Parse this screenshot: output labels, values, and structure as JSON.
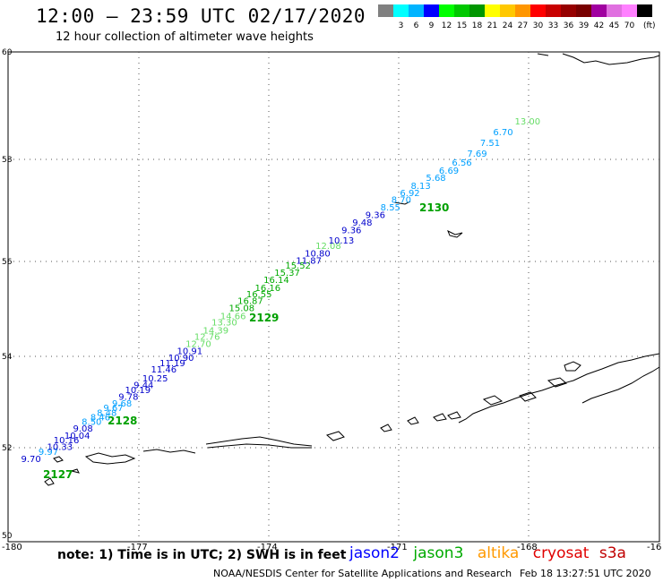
{
  "header": {
    "title": "12:00 – 23:59 UTC 02/17/2020",
    "subtitle": "12 hour collection of altimeter wave heights"
  },
  "colorbar": {
    "colors": [
      "#808080",
      "#00ffff",
      "#00b4ff",
      "#0000ff",
      "#00ff00",
      "#00c800",
      "#009600",
      "#ffff00",
      "#ffc800",
      "#ff9600",
      "#ff0000",
      "#c80000",
      "#960000",
      "#780000",
      "#a000a0",
      "#e070e0",
      "#ff80ff",
      "#000000"
    ],
    "labels": [
      "3",
      "6",
      "9",
      "12",
      "15",
      "18",
      "21",
      "24",
      "27",
      "30",
      "33",
      "36",
      "39",
      "42",
      "45",
      "70"
    ],
    "unit": "(ft)"
  },
  "axes": {
    "lon_ticks": [
      "-180",
      "-177",
      "-174",
      "-171",
      "-168",
      "-16"
    ],
    "lat_ticks": [
      "60",
      "58",
      "56",
      "54",
      "52",
      "50"
    ]
  },
  "tracks": [
    {
      "label": "2127",
      "color": "#00a000"
    },
    {
      "label": "2128",
      "color": "#00a000"
    },
    {
      "label": "2129",
      "color": "#00a000"
    },
    {
      "label": "2130",
      "color": "#00a000"
    }
  ],
  "chart_data": {
    "type": "scatter",
    "series": [
      {
        "name": "jason2",
        "color": "#0000ff"
      },
      {
        "name": "jason3",
        "color": "#00aa00"
      },
      {
        "name": "altika",
        "color": "#ff9900"
      },
      {
        "name": "cryosat",
        "color": "#e00000"
      },
      {
        "name": "s3a",
        "color": "#c00000"
      }
    ],
    "points": [
      {
        "lon": -179.7,
        "lat": 51.7,
        "value": "9.70",
        "color": "#0000cc"
      },
      {
        "lon": -179.3,
        "lat": 51.85,
        "value": "9.97",
        "color": "#00a0ff"
      },
      {
        "lon": -179.1,
        "lat": 51.95,
        "value": "10.33",
        "color": "#0000cc"
      },
      {
        "lon": -178.95,
        "lat": 52.1,
        "value": "10.16",
        "color": "#0000cc"
      },
      {
        "lon": -178.7,
        "lat": 52.2,
        "value": "10.04",
        "color": "#0000cc"
      },
      {
        "lon": -178.5,
        "lat": 52.35,
        "value": "9.08",
        "color": "#0000cc"
      },
      {
        "lon": -178.3,
        "lat": 52.5,
        "value": "8.50",
        "color": "#00a0ff"
      },
      {
        "lon": -178.1,
        "lat": 52.6,
        "value": "8.46",
        "color": "#00a0ff"
      },
      {
        "lon": -177.95,
        "lat": 52.7,
        "value": "8.48",
        "color": "#00a0ff"
      },
      {
        "lon": -177.8,
        "lat": 52.8,
        "value": "9.67",
        "color": "#00a0ff"
      },
      {
        "lon": -177.6,
        "lat": 52.9,
        "value": "9.68",
        "color": "#00a0ff"
      },
      {
        "lon": -177.45,
        "lat": 53.05,
        "value": "9.78",
        "color": "#0000cc"
      },
      {
        "lon": -177.3,
        "lat": 53.2,
        "value": "10.19",
        "color": "#0000cc"
      },
      {
        "lon": -177.1,
        "lat": 53.3,
        "value": "9.44",
        "color": "#0000cc"
      },
      {
        "lon": -176.9,
        "lat": 53.45,
        "value": "10.25",
        "color": "#0000cc"
      },
      {
        "lon": -176.7,
        "lat": 53.65,
        "value": "11.46",
        "color": "#0000cc"
      },
      {
        "lon": -176.5,
        "lat": 53.78,
        "value": "11.19",
        "color": "#0000cc"
      },
      {
        "lon": -176.3,
        "lat": 53.9,
        "value": "10.90",
        "color": "#0000cc"
      },
      {
        "lon": -176.1,
        "lat": 54.05,
        "value": "10.91",
        "color": "#0000cc"
      },
      {
        "lon": -175.9,
        "lat": 54.2,
        "value": "12.70",
        "color": "#66dd66"
      },
      {
        "lon": -175.7,
        "lat": 54.35,
        "value": "12.76",
        "color": "#66dd66"
      },
      {
        "lon": -175.5,
        "lat": 54.48,
        "value": "14.39",
        "color": "#66dd66"
      },
      {
        "lon": -175.3,
        "lat": 54.65,
        "value": "13.30",
        "color": "#66dd66"
      },
      {
        "lon": -175.1,
        "lat": 54.78,
        "value": "14.66",
        "color": "#66dd66"
      },
      {
        "lon": -174.9,
        "lat": 54.95,
        "value": "15.08",
        "color": "#00aa00"
      },
      {
        "lon": -174.7,
        "lat": 55.1,
        "value": "16.87",
        "color": "#00aa00"
      },
      {
        "lon": -174.5,
        "lat": 55.25,
        "value": "16.55",
        "color": "#00aa00"
      },
      {
        "lon": -174.3,
        "lat": 55.38,
        "value": "16.16",
        "color": "#00aa00"
      },
      {
        "lon": -174.1,
        "lat": 55.55,
        "value": "16.14",
        "color": "#00aa00"
      },
      {
        "lon": -173.85,
        "lat": 55.7,
        "value": "15.37",
        "color": "#00aa00"
      },
      {
        "lon": -173.6,
        "lat": 55.85,
        "value": "15.52",
        "color": "#00aa00"
      },
      {
        "lon": -173.35,
        "lat": 55.95,
        "value": "11.87",
        "color": "#0000cc"
      },
      {
        "lon": -173.15,
        "lat": 56.1,
        "value": "10.80",
        "color": "#0000cc"
      },
      {
        "lon": -172.9,
        "lat": 56.25,
        "value": "12.08",
        "color": "#66dd66"
      },
      {
        "lon": -172.6,
        "lat": 56.35,
        "value": "10.13",
        "color": "#0000cc"
      },
      {
        "lon": -172.3,
        "lat": 56.55,
        "value": "9.36",
        "color": "#0000cc"
      },
      {
        "lon": -172.05,
        "lat": 56.7,
        "value": "9.48",
        "color": "#0000cc"
      },
      {
        "lon": -171.75,
        "lat": 56.85,
        "value": "9.36",
        "color": "#0000cc"
      },
      {
        "lon": -171.4,
        "lat": 57.0,
        "value": "8.55",
        "color": "#00a0ff"
      },
      {
        "lon": -171.15,
        "lat": 57.15,
        "value": "8.70",
        "color": "#00a0ff"
      },
      {
        "lon": -170.95,
        "lat": 57.28,
        "value": "6.92",
        "color": "#00a0ff"
      },
      {
        "lon": -170.7,
        "lat": 57.42,
        "value": "8.13",
        "color": "#00a0ff"
      },
      {
        "lon": -170.35,
        "lat": 57.58,
        "value": "5.68",
        "color": "#00a0ff"
      },
      {
        "lon": -170.05,
        "lat": 57.72,
        "value": "6.69",
        "color": "#00a0ff"
      },
      {
        "lon": -169.75,
        "lat": 57.88,
        "value": "6.56",
        "color": "#00a0ff"
      },
      {
        "lon": -169.4,
        "lat": 58.05,
        "value": "7.69",
        "color": "#00a0ff"
      },
      {
        "lon": -169.1,
        "lat": 58.25,
        "value": "7.51",
        "color": "#00a0ff"
      },
      {
        "lon": -168.8,
        "lat": 58.45,
        "value": "6.70",
        "color": "#00a0ff"
      },
      {
        "lon": -168.3,
        "lat": 58.65,
        "value": "13.00",
        "color": "#66dd66"
      }
    ]
  },
  "footer": {
    "note": "note:  1) Time is in UTC;  2) SWH is in feet",
    "credit": "NOAA/NESDIS Center for Satellite Applications and Research",
    "timestamp": "Feb 18 13:27:51 UTC 2020"
  }
}
